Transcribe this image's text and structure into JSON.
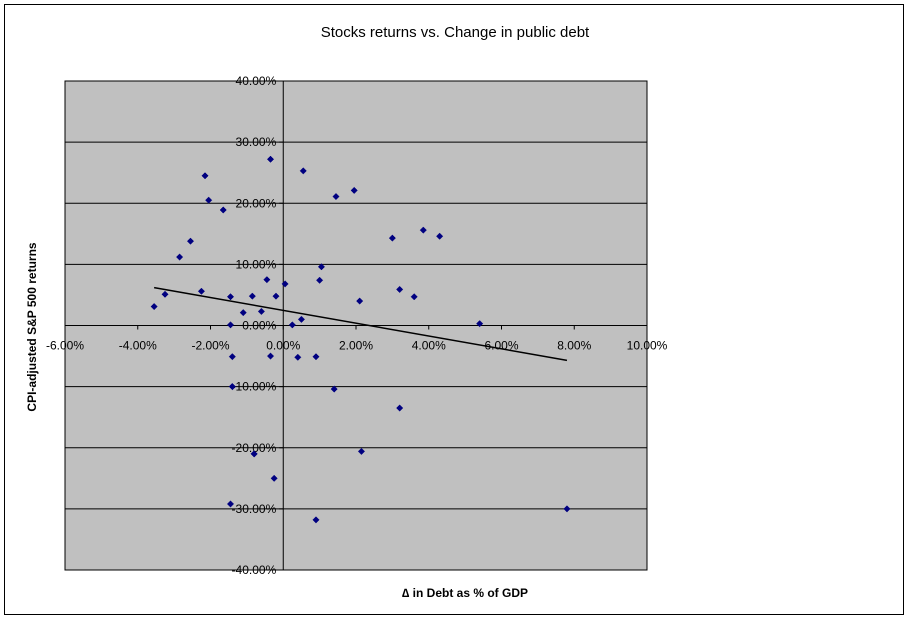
{
  "chart_data": {
    "type": "scatter",
    "title": "Stocks returns vs. Change in public debt",
    "xlabel": "∆ in Debt as % of GDP",
    "ylabel": "CPI-adjusted S&P 500 returns",
    "xlim": [
      -0.06,
      0.1
    ],
    "ylim": [
      -0.4,
      0.4
    ],
    "x_ticks": [
      -0.06,
      -0.04,
      -0.02,
      0.0,
      0.02,
      0.04,
      0.06,
      0.08,
      0.1
    ],
    "x_tick_labels": [
      "-6.00%",
      "-4.00%",
      "-2.00%",
      "0.00%",
      "2.00%",
      "4.00%",
      "6.00%",
      "8.00%",
      "10.00%"
    ],
    "y_ticks": [
      0.4,
      0.3,
      0.2,
      0.1,
      0.0,
      -0.1,
      -0.2,
      -0.3,
      -0.4
    ],
    "y_tick_labels": [
      "40.00%",
      "30.00%",
      "20.00%",
      "10.00%",
      "0.00%",
      "-10.00%",
      "-20.00%",
      "-30.00%",
      "-40.00%"
    ],
    "grid": true,
    "legend": "none",
    "colors": {
      "plot_background": "#c0c0c0",
      "gridline": "#000000",
      "marker": "#000080",
      "trendline": "#000000",
      "border": "#000000"
    },
    "series": [
      {
        "marker": "diamond",
        "x": [
          -0.0355,
          -0.0325,
          -0.0285,
          -0.0255,
          -0.0225,
          -0.0215,
          -0.0205,
          -0.0165,
          -0.0145,
          -0.0145,
          -0.014,
          -0.014,
          -0.014,
          -0.0145,
          -0.011,
          -0.0085,
          -0.008,
          -0.008,
          -0.006,
          -0.0045,
          -0.0035,
          -0.0035,
          -0.002,
          -0.0025,
          0.0005,
          0.0025,
          0.004,
          0.005,
          0.0055,
          0.009,
          0.009,
          0.01,
          0.0105,
          0.014,
          0.0145,
          0.0195,
          0.021,
          0.0215,
          0.03,
          0.032,
          0.032,
          0.036,
          0.0385,
          0.043,
          0.054,
          0.078
        ],
        "y": [
          0.031,
          0.051,
          0.112,
          0.138,
          0.056,
          0.245,
          0.205,
          0.189,
          0.047,
          0.001,
          -0.051,
          -0.1,
          -0.1,
          -0.292,
          0.021,
          0.048,
          -0.21,
          -0.21,
          0.023,
          0.075,
          0.272,
          -0.05,
          0.048,
          -0.25,
          0.068,
          0.001,
          -0.052,
          0.01,
          0.253,
          -0.051,
          -0.318,
          0.074,
          0.096,
          -0.104,
          0.211,
          0.221,
          0.04,
          -0.206,
          0.143,
          0.059,
          -0.135,
          0.047,
          0.156,
          0.146,
          0.003,
          -0.3
        ]
      }
    ],
    "trendline": {
      "type": "linear",
      "x": [
        -0.0355,
        0.078
      ],
      "y": [
        0.062,
        -0.057
      ]
    }
  }
}
